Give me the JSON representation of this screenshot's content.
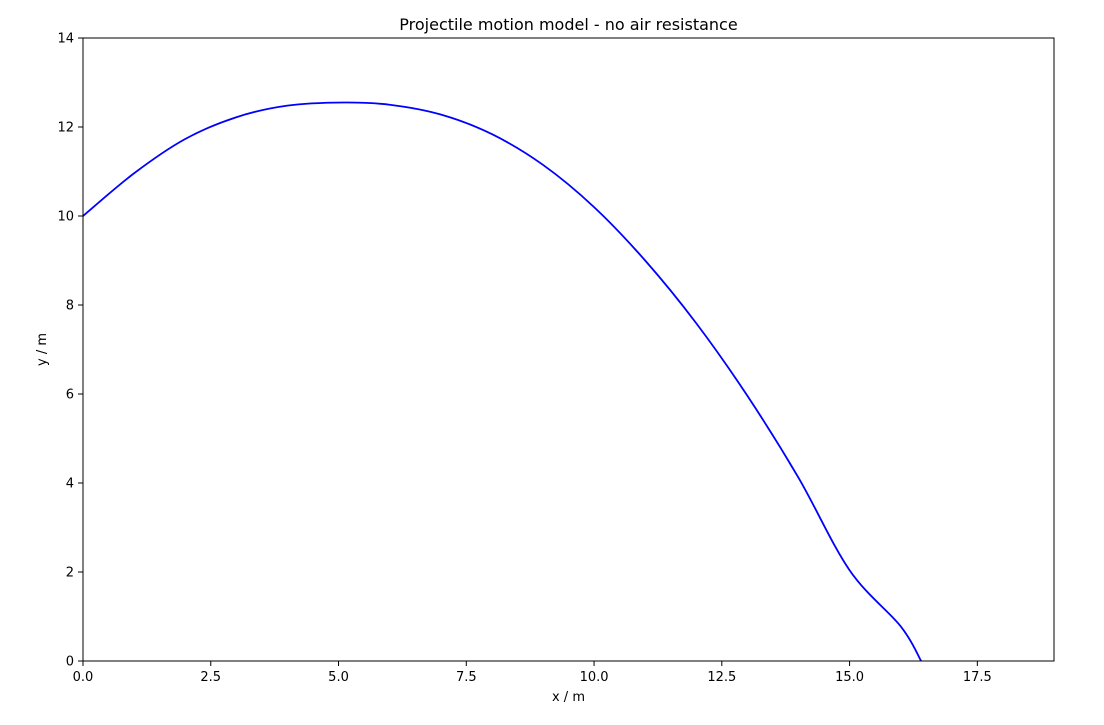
{
  "chart_data": {
    "type": "line",
    "title": "Projectile motion model - no air resistance",
    "xlabel": "x / m",
    "ylabel": "y / m",
    "xlim": [
      0,
      19
    ],
    "ylim": [
      0,
      14
    ],
    "x_ticks": [
      0.0,
      2.5,
      5.0,
      7.5,
      10.0,
      12.5,
      15.0,
      17.5
    ],
    "x_tick_labels": [
      "0.0",
      "2.5",
      "5.0",
      "7.5",
      "10.0",
      "12.5",
      "15.0",
      "17.5"
    ],
    "y_ticks": [
      0,
      2,
      4,
      6,
      8,
      10,
      12,
      14
    ],
    "y_tick_labels": [
      "0",
      "2",
      "4",
      "6",
      "8",
      "10",
      "12",
      "14"
    ],
    "grid": false,
    "legend": false,
    "series": [
      {
        "color": "#0000ff",
        "x": [
          0.0,
          1.0,
          2.0,
          3.0,
          4.0,
          5.1,
          6.0,
          7.0,
          8.0,
          9.0,
          10.0,
          11.0,
          12.0,
          13.0,
          14.0,
          15.0,
          16.0,
          16.4
        ],
        "y": [
          10.0,
          10.96,
          11.73,
          12.22,
          12.48,
          12.55,
          12.5,
          12.28,
          11.84,
          11.15,
          10.2,
          9.0,
          7.59,
          5.96,
          4.12,
          2.04,
          0.78,
          0.0
        ]
      }
    ]
  }
}
